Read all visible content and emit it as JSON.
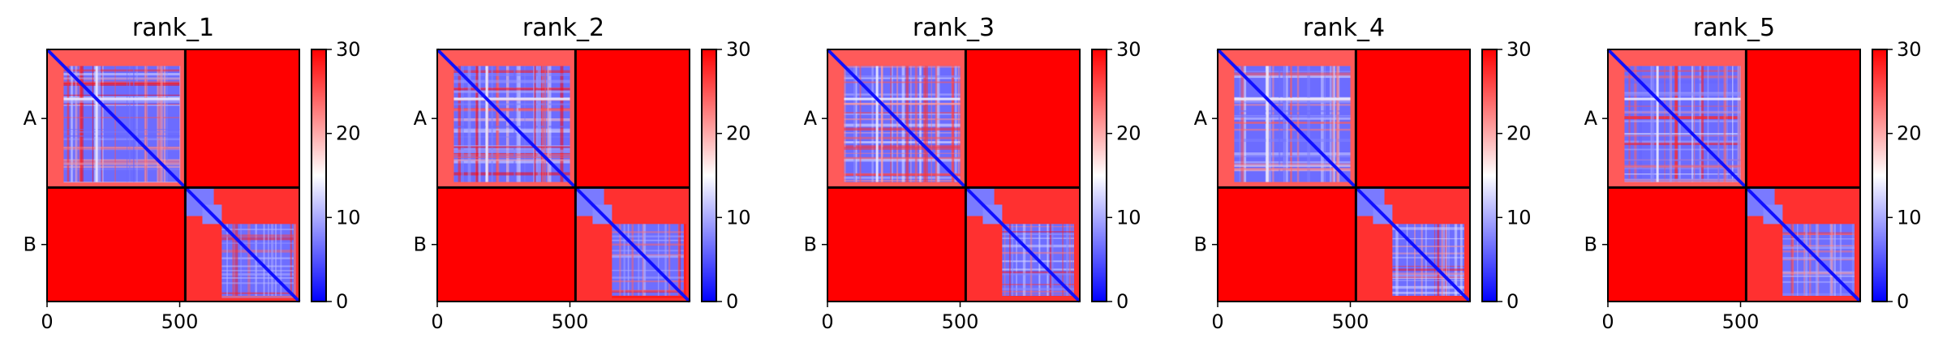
{
  "chart_data": [
    {
      "type": "heatmap",
      "title": "rank_1",
      "xticks": [
        0,
        500
      ],
      "yticklabels": [
        "A",
        "B"
      ],
      "chain_lengths": [
        521,
        430
      ],
      "colorbar": {
        "min": 0,
        "max": 30,
        "ticks": [
          0,
          10,
          20,
          30
        ],
        "colormap": "bwr"
      },
      "grid": false
    },
    {
      "type": "heatmap",
      "title": "rank_2",
      "xticks": [
        0,
        500
      ],
      "yticklabels": [
        "A",
        "B"
      ],
      "chain_lengths": [
        521,
        430
      ],
      "colorbar": {
        "min": 0,
        "max": 30,
        "ticks": [
          0,
          10,
          20,
          30
        ],
        "colormap": "bwr"
      },
      "grid": false
    },
    {
      "type": "heatmap",
      "title": "rank_3",
      "xticks": [
        0,
        500
      ],
      "yticklabels": [
        "A",
        "B"
      ],
      "chain_lengths": [
        521,
        430
      ],
      "colorbar": {
        "min": 0,
        "max": 30,
        "ticks": [
          0,
          10,
          20,
          30
        ],
        "colormap": "bwr"
      },
      "grid": false
    },
    {
      "type": "heatmap",
      "title": "rank_4",
      "xticks": [
        0,
        500
      ],
      "yticklabels": [
        "A",
        "B"
      ],
      "chain_lengths": [
        521,
        430
      ],
      "colorbar": {
        "min": 0,
        "max": 30,
        "ticks": [
          0,
          10,
          20,
          30
        ],
        "colormap": "bwr"
      },
      "grid": false
    },
    {
      "type": "heatmap",
      "title": "rank_5",
      "xticks": [
        0,
        500
      ],
      "yticklabels": [
        "A",
        "B"
      ],
      "chain_lengths": [
        521,
        430
      ],
      "colorbar": {
        "min": 0,
        "max": 30,
        "ticks": [
          0,
          10,
          20,
          30
        ],
        "colormap": "bwr"
      },
      "grid": false
    }
  ],
  "colors": {
    "low": "#0000ff",
    "mid": "#ffffff",
    "high": "#ff0000",
    "boundary": "#000000"
  }
}
